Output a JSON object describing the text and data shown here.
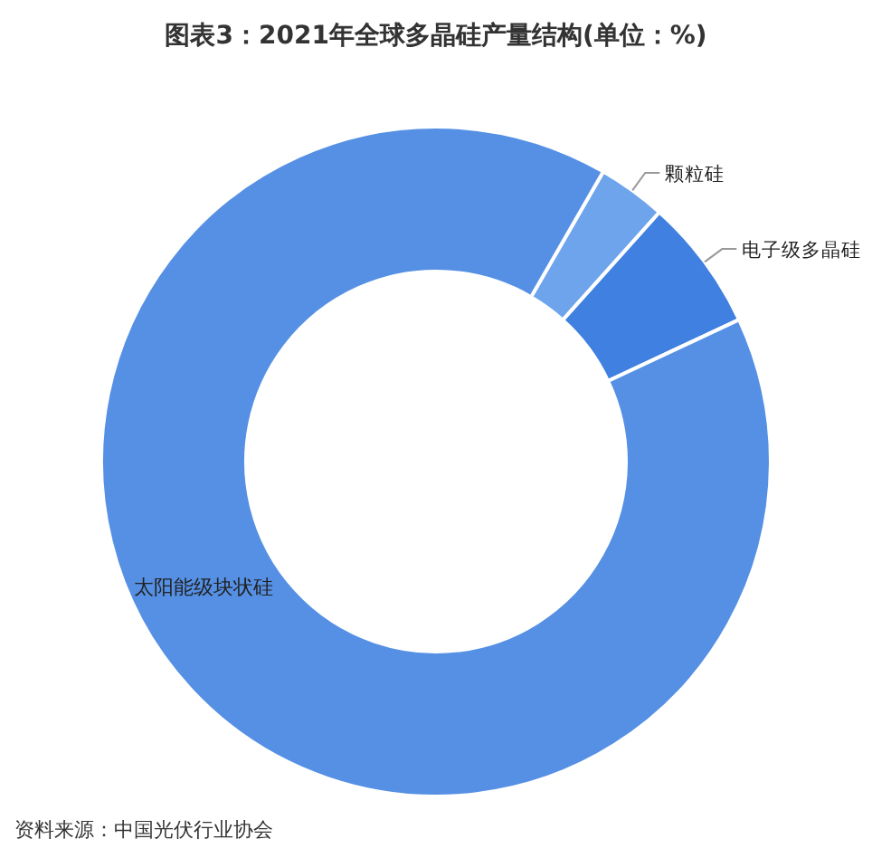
{
  "chart_data": {
    "type": "donut",
    "title": "图表3：2021年全球多晶硅产量结构(单位：%)",
    "categories": [
      "颗粒硅",
      "电子级多晶硅",
      "太阳能级块状硅"
    ],
    "values": [
      3.3,
      6.4,
      90.3
    ],
    "colors": [
      "#6ea4ec",
      "#3f80e0",
      "#5590e4"
    ],
    "annotations": [
      "资料来源：中国光伏行业协会"
    ]
  }
}
